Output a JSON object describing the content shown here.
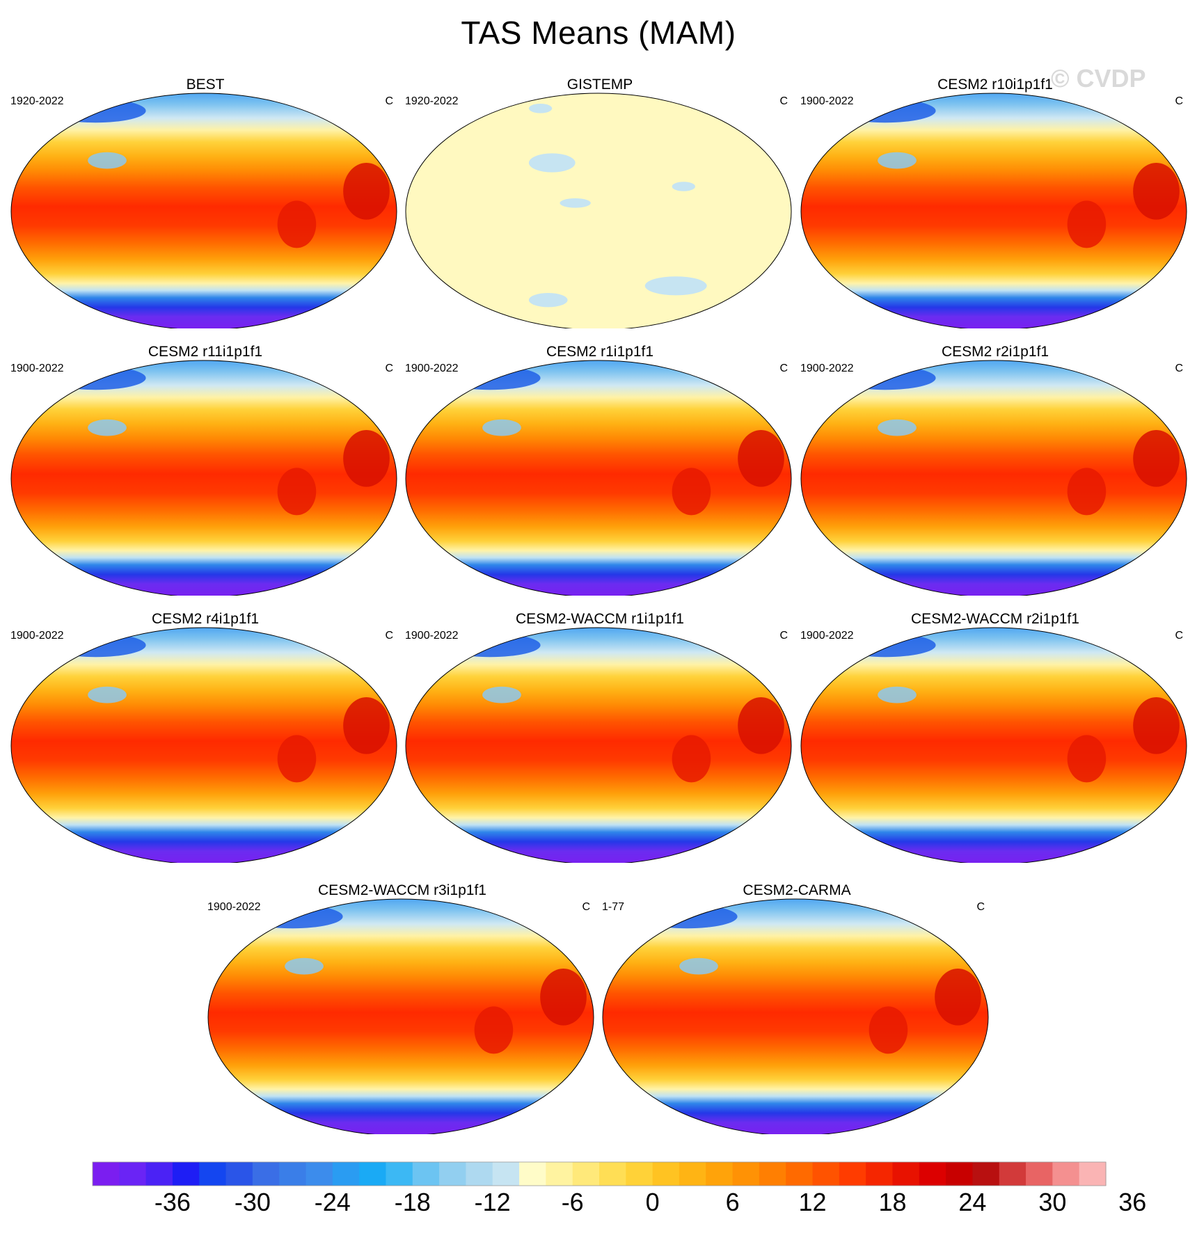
{
  "figure": {
    "title": "TAS Means (MAM)",
    "watermark": "© CVDP"
  },
  "panels": [
    {
      "title": "BEST",
      "period": "1920-2022",
      "units": "C",
      "field": "model"
    },
    {
      "title": "GISTEMP",
      "period": "1920-2022",
      "units": "C",
      "field": "anomaly"
    },
    {
      "title": "CESM2 r10i1p1f1",
      "period": "1900-2022",
      "units": "C",
      "field": "model"
    },
    {
      "title": "CESM2 r11i1p1f1",
      "period": "1900-2022",
      "units": "C",
      "field": "model"
    },
    {
      "title": "CESM2 r1i1p1f1",
      "period": "1900-2022",
      "units": "C",
      "field": "model"
    },
    {
      "title": "CESM2 r2i1p1f1",
      "period": "1900-2022",
      "units": "C",
      "field": "model"
    },
    {
      "title": "CESM2 r4i1p1f1",
      "period": "1900-2022",
      "units": "C",
      "field": "model"
    },
    {
      "title": "CESM2-WACCM r1i1p1f1",
      "period": "1900-2022",
      "units": "C",
      "field": "model"
    },
    {
      "title": "CESM2-WACCM r2i1p1f1",
      "period": "1900-2022",
      "units": "C",
      "field": "model"
    },
    {
      "title": "CESM2-WACCM r3i1p1f1",
      "period": "1900-2022",
      "units": "C",
      "field": "model"
    },
    {
      "title": "CESM2-CARMA",
      "period": "1-77",
      "units": "C",
      "field": "model"
    }
  ],
  "colorbar": {
    "labels": [
      "-36",
      "-30",
      "-24",
      "-18",
      "-12",
      "-6",
      "0",
      "6",
      "12",
      "18",
      "24",
      "30",
      "36"
    ],
    "colors": [
      "#7b1ef0",
      "#6a24f5",
      "#4b22f5",
      "#1e1ef5",
      "#1446f0",
      "#2a55e8",
      "#3a6ee6",
      "#3a7ee8",
      "#3c8cec",
      "#2a9cf2",
      "#1aaaf5",
      "#3cb8f4",
      "#6cc4f2",
      "#92cff0",
      "#aed9f0",
      "#c6e4f2",
      "#fffcc8",
      "#fff3a0",
      "#ffe97a",
      "#ffde55",
      "#ffd238",
      "#ffc322",
      "#ffb414",
      "#ffa30a",
      "#ff9205",
      "#ff7f02",
      "#ff6a00",
      "#ff5300",
      "#ff3c00",
      "#f52600",
      "#e81200",
      "#dc0000",
      "#c80000",
      "#b81010",
      "#d23a3a",
      "#e86464",
      "#f49090",
      "#fab4b4"
    ]
  }
}
